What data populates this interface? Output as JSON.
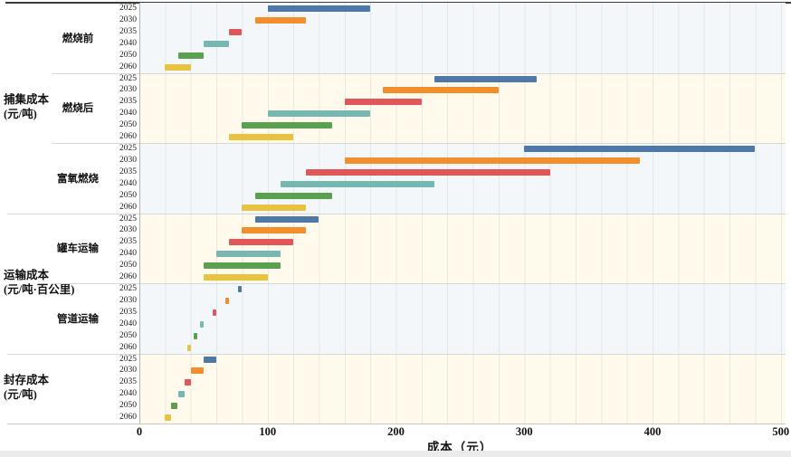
{
  "axis": {
    "title": "成本（元）",
    "ticks": [
      "0",
      "100",
      "200",
      "300",
      "400",
      "500"
    ],
    "min": 0,
    "max": 500
  },
  "colors": {
    "year_palette": {
      "2025": "#4e79a7",
      "2030": "#f28e2b",
      "2035": "#e15759",
      "2040": "#76b7b2",
      "2050": "#59a14f",
      "2060": "#e9c23f"
    },
    "band_blue": "#f3f7fa",
    "band_cream": "#fffaec"
  },
  "chart_data": {
    "type": "bar",
    "orientation": "horizontal-range",
    "title": "",
    "xlabel": "成本（元）",
    "xlim": [
      0,
      500
    ],
    "grid": "vertical, every 20 units",
    "categories": [
      "2025",
      "2030",
      "2035",
      "2040",
      "2050",
      "2060"
    ],
    "major_labels": [
      {
        "text": "捕集成本",
        "unit": "(元/吨)",
        "groups": [
          0,
          1,
          2
        ]
      },
      {
        "text": "运输成本",
        "unit": "(元/吨·百公里)",
        "groups": [
          3,
          4
        ]
      },
      {
        "text": "封存成本",
        "unit": "(元/吨)",
        "groups": [
          5
        ]
      }
    ],
    "groups": [
      {
        "category": "捕集成本",
        "subcategory": "燃烧前",
        "band": "blue",
        "rows": [
          {
            "year": "2025",
            "min": 100,
            "max": 180
          },
          {
            "year": "2030",
            "min": 90,
            "max": 130
          },
          {
            "year": "2035",
            "min": 70,
            "max": 80
          },
          {
            "year": "2040",
            "min": 50,
            "max": 70
          },
          {
            "year": "2050",
            "min": 30,
            "max": 50
          },
          {
            "year": "2060",
            "min": 20,
            "max": 40
          }
        ]
      },
      {
        "category": "捕集成本",
        "subcategory": "燃烧后",
        "band": "cream",
        "rows": [
          {
            "year": "2025",
            "min": 230,
            "max": 310
          },
          {
            "year": "2030",
            "min": 190,
            "max": 280
          },
          {
            "year": "2035",
            "min": 160,
            "max": 220
          },
          {
            "year": "2040",
            "min": 100,
            "max": 180
          },
          {
            "year": "2050",
            "min": 80,
            "max": 150
          },
          {
            "year": "2060",
            "min": 70,
            "max": 120
          }
        ]
      },
      {
        "category": "捕集成本",
        "subcategory": "富氧燃烧",
        "band": "blue",
        "rows": [
          {
            "year": "2025",
            "min": 300,
            "max": 480
          },
          {
            "year": "2030",
            "min": 160,
            "max": 390
          },
          {
            "year": "2035",
            "min": 130,
            "max": 320
          },
          {
            "year": "2040",
            "min": 110,
            "max": 230
          },
          {
            "year": "2050",
            "min": 90,
            "max": 150
          },
          {
            "year": "2060",
            "min": 80,
            "max": 130
          }
        ]
      },
      {
        "category": "运输成本",
        "subcategory": "罐车运输",
        "band": "cream",
        "rows": [
          {
            "year": "2025",
            "min": 90,
            "max": 140
          },
          {
            "year": "2030",
            "min": 80,
            "max": 130
          },
          {
            "year": "2035",
            "min": 70,
            "max": 120
          },
          {
            "year": "2040",
            "min": 60,
            "max": 110
          },
          {
            "year": "2050",
            "min": 50,
            "max": 110
          },
          {
            "year": "2060",
            "min": 50,
            "max": 100
          }
        ]
      },
      {
        "category": "运输成本",
        "subcategory": "管道运输",
        "band": "blue",
        "rows": [
          {
            "year": "2025",
            "min": 77,
            "max": 80
          },
          {
            "year": "2030",
            "min": 67,
            "max": 70
          },
          {
            "year": "2035",
            "min": 57,
            "max": 60
          },
          {
            "year": "2040",
            "min": 47,
            "max": 50
          },
          {
            "year": "2050",
            "min": 42,
            "max": 45
          },
          {
            "year": "2060",
            "min": 37,
            "max": 40
          }
        ]
      },
      {
        "category": "封存成本",
        "subcategory": "",
        "band": "cream",
        "rows": [
          {
            "year": "2025",
            "min": 50,
            "max": 60
          },
          {
            "year": "2030",
            "min": 40,
            "max": 50
          },
          {
            "year": "2035",
            "min": 35,
            "max": 40
          },
          {
            "year": "2040",
            "min": 30,
            "max": 35
          },
          {
            "year": "2050",
            "min": 25,
            "max": 30
          },
          {
            "year": "2060",
            "min": 20,
            "max": 25
          }
        ]
      }
    ]
  }
}
